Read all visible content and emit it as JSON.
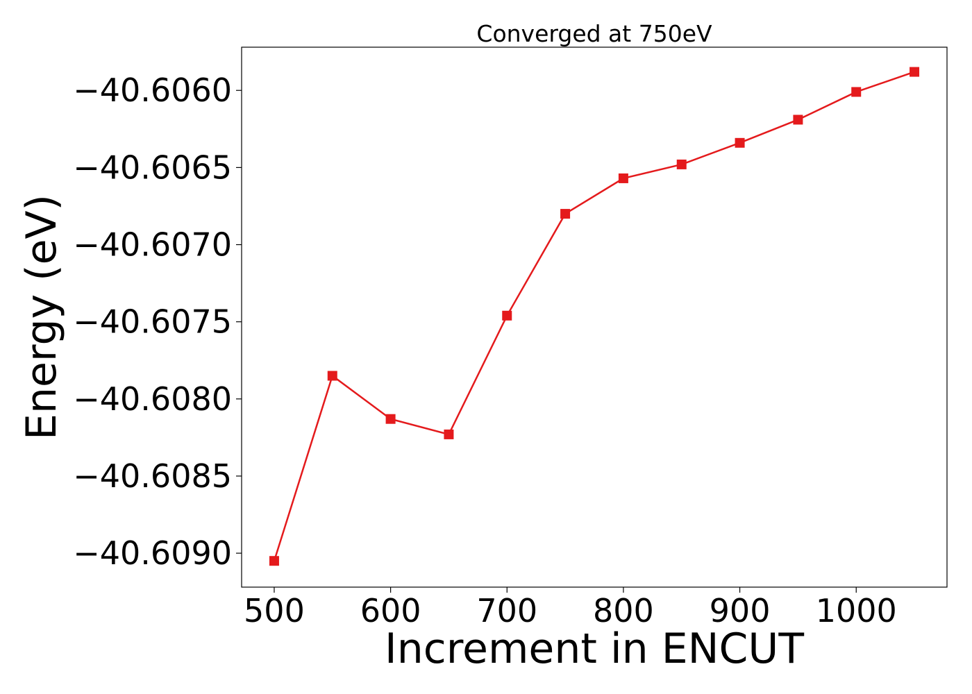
{
  "chart_data": {
    "type": "line",
    "title": "Converged at 750eV",
    "xlabel": "Increment in ENCUT",
    "ylabel": "Energy (eV)",
    "xlim": [
      472,
      1078
    ],
    "ylim": [
      -40.60922,
      -40.60572
    ],
    "x_ticks": [
      500,
      600,
      700,
      800,
      900,
      1000
    ],
    "x_tick_labels": [
      "500",
      "600",
      "700",
      "800",
      "900",
      "1000"
    ],
    "y_ticks": [
      -40.606,
      -40.6065,
      -40.607,
      -40.6075,
      -40.608,
      -40.6085,
      -40.609
    ],
    "y_tick_labels": [
      "−40.6060",
      "−40.6065",
      "−40.6070",
      "−40.6075",
      "−40.6080",
      "−40.6085",
      "−40.6090"
    ],
    "grid": false,
    "legend": "none",
    "series": [
      {
        "color": "#e41a1c",
        "marker": "square",
        "x": [
          500,
          550,
          600,
          650,
          700,
          750,
          800,
          850,
          900,
          950,
          1000,
          1050
        ],
        "y": [
          -40.60905,
          -40.60785,
          -40.60813,
          -40.60823,
          -40.60746,
          -40.6068,
          -40.60657,
          -40.60648,
          -40.60634,
          -40.60619,
          -40.60601,
          -40.60588
        ]
      }
    ]
  }
}
